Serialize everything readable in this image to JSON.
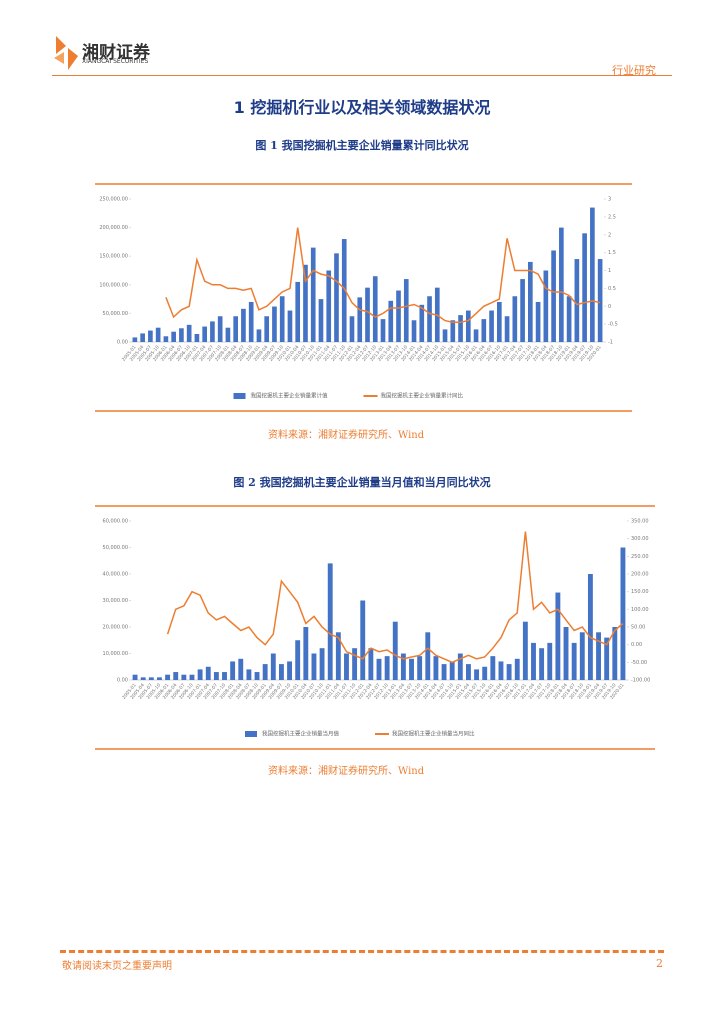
{
  "header": {
    "company": "湘财证券",
    "company_en": "XIANGCAI SECURITIES",
    "category": "行业研究"
  },
  "section": {
    "number": "1",
    "title": "挖掘机行业以及相关领域数据状况"
  },
  "footer": {
    "notice": "敬请阅读末页之重要声明",
    "page": "2"
  },
  "chart_data": [
    {
      "type": "bar_line",
      "figure": "图 1",
      "title": "我国挖掘机主要企业销量累计同比状况",
      "source": "资料来源：湘财证券研究所、Wind",
      "categories": [
        "2005-01",
        "2005-04",
        "2005-07",
        "2005-10",
        "2006-01",
        "2006-04",
        "2006-07",
        "2006-10",
        "2007-01",
        "2007-04",
        "2007-07",
        "2007-10",
        "2008-01",
        "2008-04",
        "2008-07",
        "2008-10",
        "2009-01",
        "2009-04",
        "2009-07",
        "2009-10",
        "2010-01",
        "2010-04",
        "2010-07",
        "2010-10",
        "2011-01",
        "2011-04",
        "2011-07",
        "2011-10",
        "2012-01",
        "2012-04",
        "2012-07",
        "2012-10",
        "2013-01",
        "2013-04",
        "2013-07",
        "2013-10",
        "2014-01",
        "2014-04",
        "2014-07",
        "2014-10",
        "2015-01",
        "2015-04",
        "2015-07",
        "2015-10",
        "2016-01",
        "2016-04",
        "2016-07",
        "2016-10",
        "2017-01",
        "2017-04",
        "2017-07",
        "2017-10",
        "2018-01",
        "2018-04",
        "2018-07",
        "2018-10",
        "2019-01",
        "2019-04",
        "2019-07",
        "2019-10",
        "2020-01"
      ],
      "series": [
        {
          "name": "我国挖掘机主要企业销量累计值",
          "color": "#4472c4",
          "axis": "y",
          "values": [
            8000,
            15000,
            20000,
            25000,
            10000,
            18000,
            24000,
            30000,
            14000,
            27000,
            36000,
            45000,
            25000,
            45000,
            58000,
            70000,
            22000,
            45000,
            62000,
            80000,
            55000,
            105000,
            135000,
            165000,
            75000,
            125000,
            155000,
            180000,
            45000,
            78000,
            95000,
            115000,
            40000,
            72000,
            90000,
            110000,
            38000,
            65000,
            80000,
            95000,
            22000,
            38000,
            47000,
            55000,
            22000,
            40000,
            55000,
            70000,
            45000,
            80000,
            110000,
            140000,
            70000,
            125000,
            160000,
            200000,
            80000,
            145000,
            190000,
            235000,
            145000
          ]
        },
        {
          "name": "我国挖掘机主要企业销量累计同比",
          "color": "#ed7d31",
          "axis": "y2",
          "values": [
            null,
            null,
            null,
            null,
            0.25,
            -0.3,
            -0.1,
            0.0,
            1.3,
            0.7,
            0.6,
            0.6,
            0.5,
            0.5,
            0.45,
            0.5,
            -0.1,
            0.0,
            0.2,
            0.4,
            0.5,
            2.2,
            0.7,
            1.0,
            0.9,
            0.85,
            0.7,
            0.5,
            0.1,
            -0.1,
            -0.15,
            -0.3,
            -0.2,
            -0.05,
            -0.05,
            0.0,
            0.05,
            -0.05,
            -0.2,
            -0.25,
            -0.4,
            -0.45,
            -0.45,
            -0.4,
            -0.2,
            0.0,
            0.1,
            0.2,
            1.9,
            1.0,
            1.0,
            1.0,
            0.9,
            0.5,
            0.4,
            0.4,
            0.3,
            0.05,
            0.1,
            0.15,
            0.1
          ]
        }
      ],
      "ylim": [
        0,
        250000
      ],
      "yticks": [
        {
          "value": 0,
          "label": "0.00"
        },
        {
          "value": 50000,
          "label": "50,000.00"
        },
        {
          "value": 100000,
          "label": "100,000.00"
        },
        {
          "value": 150000,
          "label": "150,000.00"
        },
        {
          "value": 200000,
          "label": "200,000.00"
        },
        {
          "value": 250000,
          "label": "250,000.00"
        }
      ],
      "y2lim": [
        -1,
        3
      ],
      "y2ticks": [
        -1,
        -0.5,
        0,
        0.5,
        1,
        1.5,
        2,
        2.5,
        3
      ],
      "grid": false,
      "legend": "bottom"
    },
    {
      "type": "bar_line",
      "figure": "图 2",
      "title": "我国挖掘机主要企业销量当月值和当月同比状况",
      "source": "资料来源：湘财证券研究所、Wind",
      "categories": [
        "2005-01",
        "2005-04",
        "2005-07",
        "2005-10",
        "2006-01",
        "2006-04",
        "2006-07",
        "2006-10",
        "2007-01",
        "2007-04",
        "2007-07",
        "2007-10",
        "2008-01",
        "2008-04",
        "2008-07",
        "2008-10",
        "2009-01",
        "2009-04",
        "2009-07",
        "2009-10",
        "2010-01",
        "2010-04",
        "2010-07",
        "2010-10",
        "2011-01",
        "2011-04",
        "2011-07",
        "2011-10",
        "2012-01",
        "2012-04",
        "2012-07",
        "2012-10",
        "2013-01",
        "2013-04",
        "2013-07",
        "2013-10",
        "2014-01",
        "2014-04",
        "2014-07",
        "2014-10",
        "2015-01",
        "2015-04",
        "2015-07",
        "2015-10",
        "2016-01",
        "2016-04",
        "2016-07",
        "2016-10",
        "2017-01",
        "2017-04",
        "2017-07",
        "2017-10",
        "2018-01",
        "2018-04",
        "2018-07",
        "2018-10",
        "2019-01",
        "2019-04",
        "2019-07",
        "2019-10",
        "2020-01"
      ],
      "series": [
        {
          "name": "我国挖掘机主要企业销量当月值",
          "color": "#4472c4",
          "axis": "y",
          "values": [
            2000,
            1000,
            1000,
            1000,
            2000,
            3000,
            2000,
            2000,
            4000,
            5000,
            3000,
            3000,
            7000,
            8000,
            4000,
            3000,
            6000,
            10000,
            6000,
            7000,
            15000,
            20000,
            10000,
            12000,
            44000,
            18000,
            10000,
            12000,
            30000,
            12000,
            8000,
            9000,
            22000,
            10000,
            8000,
            9000,
            18000,
            9000,
            6000,
            7000,
            10000,
            6000,
            4000,
            5000,
            9000,
            7000,
            6000,
            8000,
            22000,
            14000,
            12000,
            14000,
            33000,
            20000,
            14000,
            18000,
            40000,
            18000,
            16000,
            20000,
            50000
          ]
        },
        {
          "name": "我国挖掘机主要企业销量当月同比",
          "color": "#ed7d31",
          "axis": "y2",
          "values": [
            null,
            null,
            null,
            null,
            30,
            100,
            110,
            150,
            140,
            90,
            70,
            80,
            60,
            40,
            50,
            20,
            0,
            30,
            180,
            150,
            120,
            60,
            80,
            50,
            30,
            20,
            -20,
            -30,
            -40,
            -10,
            -20,
            -15,
            -30,
            -40,
            -35,
            -30,
            -10,
            -30,
            -40,
            -50,
            -40,
            -30,
            -40,
            -35,
            -10,
            20,
            70,
            90,
            320,
            100,
            120,
            90,
            100,
            70,
            40,
            50,
            20,
            10,
            0,
            40,
            60
          ]
        }
      ],
      "ylim": [
        0,
        60000
      ],
      "yticks": [
        {
          "value": 0,
          "label": "0.00"
        },
        {
          "value": 10000,
          "label": "10,000.00"
        },
        {
          "value": 20000,
          "label": "20,000.00"
        },
        {
          "value": 30000,
          "label": "30,000.00"
        },
        {
          "value": 40000,
          "label": "40,000.00"
        },
        {
          "value": 50000,
          "label": "50,000.00"
        },
        {
          "value": 60000,
          "label": "60,000.00"
        }
      ],
      "y2lim": [
        -100,
        350
      ],
      "y2ticks": [
        {
          "value": -100,
          "label": "-100.00"
        },
        {
          "value": -50,
          "label": "-50.00"
        },
        {
          "value": 0,
          "label": "0.00"
        },
        {
          "value": 50,
          "label": "50.00"
        },
        {
          "value": 100,
          "label": "100.00"
        },
        {
          "value": 150,
          "label": "150.00"
        },
        {
          "value": 200,
          "label": "200.00"
        },
        {
          "value": 250,
          "label": "250.00"
        },
        {
          "value": 300,
          "label": "300.00"
        },
        {
          "value": 350,
          "label": "350.00"
        }
      ],
      "grid": false,
      "legend": "bottom"
    }
  ]
}
